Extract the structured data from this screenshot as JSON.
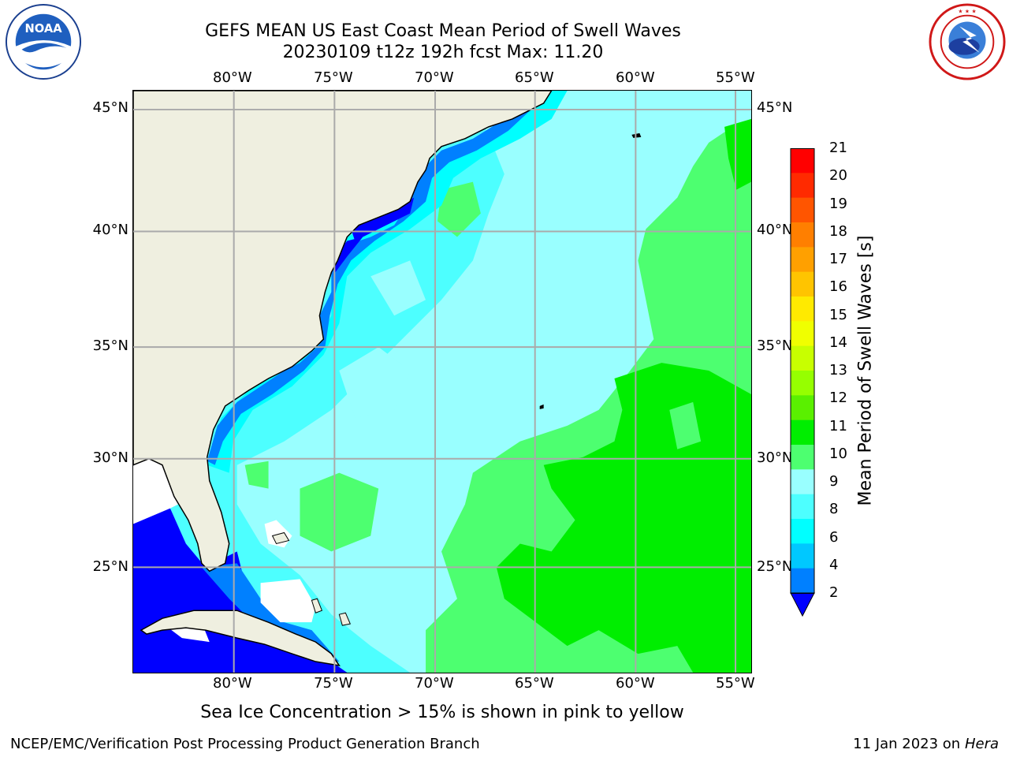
{
  "header": {
    "title_line1": "GEFS MEAN US East Coast Mean Period of Swell Waves",
    "title_line2": "20230109 t12z 192h fcst   Max: 11.20"
  },
  "logos": {
    "noaa": {
      "text": "NOAA",
      "ring_text": "NATIONAL OCEANIC AND ATMOSPHERIC ADMINISTRATION · U.S. DEPARTMENT OF COMMERCE"
    },
    "nws": {
      "ring_text": "NATIONAL WEATHER SERVICE"
    }
  },
  "map": {
    "lon_ticks": [
      "80°W",
      "75°W",
      "70°W",
      "65°W",
      "60°W",
      "55°W"
    ],
    "lat_ticks": [
      "45°N",
      "40°N",
      "35°N",
      "30°N",
      "25°N"
    ],
    "colors": {
      "land": "#efefe0",
      "grid": "#aaaaaa",
      "coast": "#000000",
      "no_data": "#ffffff"
    }
  },
  "colorbar": {
    "label": "Mean Period of Swell Waves [s]",
    "ticks": [
      "21",
      "20",
      "19",
      "18",
      "17",
      "16",
      "15",
      "14",
      "13",
      "12",
      "11",
      "10",
      "9",
      "8",
      "6",
      "4",
      "2"
    ],
    "colors": [
      "#ff0000",
      "#ff2a00",
      "#ff5500",
      "#ff7f00",
      "#ffa000",
      "#ffc400",
      "#ffea00",
      "#f0ff00",
      "#c8ff00",
      "#96ff00",
      "#5af000",
      "#00ee00",
      "#4dff70",
      "#99ffff",
      "#4dffff",
      "#00ffff",
      "#00c8ff",
      "#0080ff",
      "#0000ff"
    ],
    "under_color": "#0000ff"
  },
  "note": "Sea Ice Concentration > 15% is shown in pink to yellow",
  "footer": {
    "left": "NCEP/EMC/Verification Post Processing Product Generation Branch",
    "date": "11 Jan 2023 on ",
    "machine": "Hera"
  }
}
